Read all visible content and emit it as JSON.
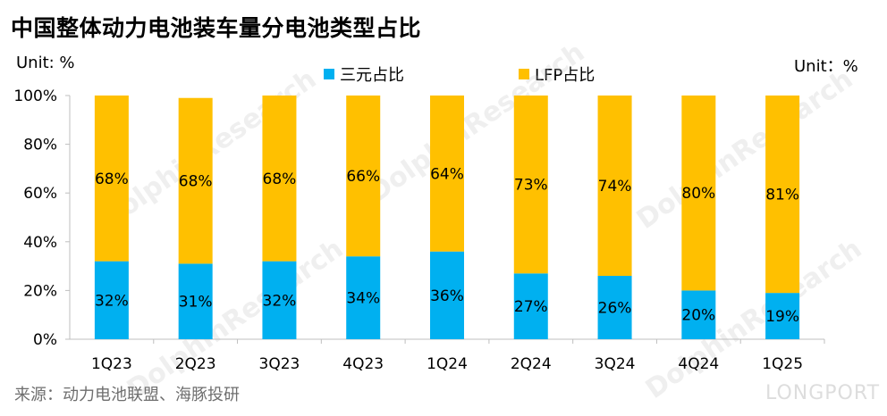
{
  "page": {
    "title": "中国整体动力电池装车量分电池类型占比",
    "unit_left": "Unit: %",
    "unit_right": "Unit：%",
    "source": "来源：动力电池联盟、海豚投研",
    "watermark": "DolphinResearch",
    "watermark_brand": "LONGPORT"
  },
  "chart_data": {
    "type": "bar",
    "stacked": true,
    "categories": [
      "1Q23",
      "2Q23",
      "3Q23",
      "4Q23",
      "1Q24",
      "2Q24",
      "3Q24",
      "4Q24",
      "1Q25"
    ],
    "series": [
      {
        "name": "三元占比",
        "color": "#00b0f0",
        "values": [
          32,
          31,
          32,
          34,
          36,
          27,
          26,
          20,
          19
        ]
      },
      {
        "name": "LFP占比",
        "color": "#ffc000",
        "values": [
          68,
          68,
          68,
          66,
          64,
          73,
          74,
          80,
          81
        ]
      }
    ],
    "ylim": [
      0,
      100
    ],
    "yticks": [
      "0%",
      "20%",
      "40%",
      "60%",
      "80%",
      "100%"
    ],
    "legend_position": "top-center",
    "grid": false
  }
}
